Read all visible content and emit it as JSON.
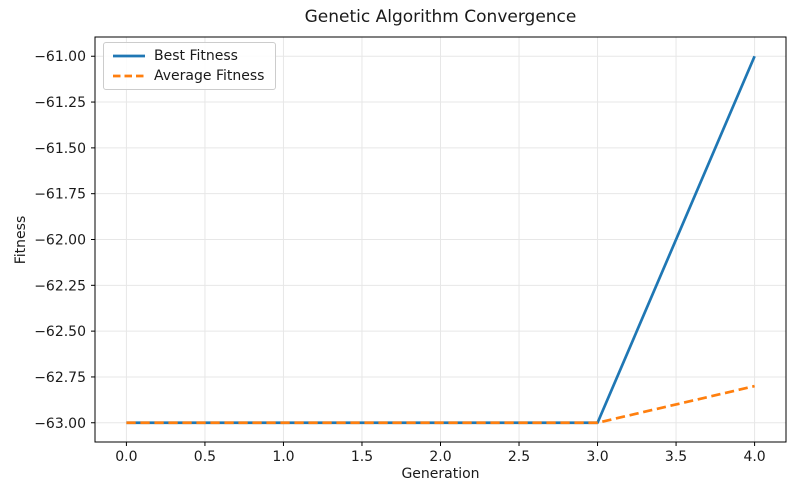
{
  "chart_data": {
    "type": "line",
    "title": "Genetic Algorithm Convergence",
    "xlabel": "Generation",
    "ylabel": "Fitness",
    "x": [
      0,
      1,
      2,
      3,
      4
    ],
    "series": [
      {
        "name": "Best Fitness",
        "values": [
          -63.0,
          -63.0,
          -63.0,
          -63.0,
          -61.0
        ],
        "color": "#1f77b4",
        "style": "solid"
      },
      {
        "name": "Average Fitness",
        "values": [
          -63.0,
          -63.0,
          -63.0,
          -63.0,
          -62.8
        ],
        "color": "#ff7f0e",
        "style": "dashed"
      }
    ],
    "xlim": [
      -0.2,
      4.2
    ],
    "ylim": [
      -63.105,
      -60.895
    ],
    "x_ticks": [
      0.0,
      0.5,
      1.0,
      1.5,
      2.0,
      2.5,
      3.0,
      3.5,
      4.0
    ],
    "x_tick_labels": [
      "0.0",
      "0.5",
      "1.0",
      "1.5",
      "2.0",
      "2.5",
      "3.0",
      "3.5",
      "4.0"
    ],
    "y_ticks": [
      -61.0,
      -61.25,
      -61.5,
      -61.75,
      -62.0,
      -62.25,
      -62.5,
      -62.75,
      -63.0
    ],
    "y_tick_labels": [
      "−61.00",
      "−61.25",
      "−61.50",
      "−61.75",
      "−62.00",
      "−62.25",
      "−62.50",
      "−62.75",
      "−63.00"
    ],
    "grid": true,
    "grid_color": "#e7e7e7",
    "spine_color": "#000000",
    "legend_position": "upper left"
  }
}
